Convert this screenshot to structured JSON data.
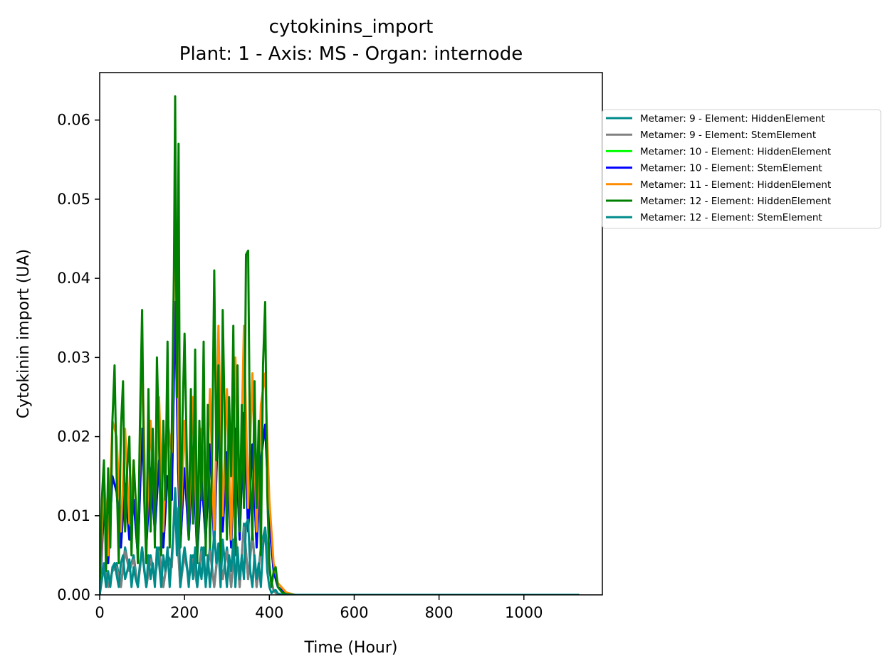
{
  "chart_data": {
    "type": "line",
    "title": "cytokinins_import",
    "subtitle": "Plant: 1 - Axis: MS - Organ: internode",
    "xlabel": "Time (Hour)",
    "ylabel": "Cytokinin import (UA)",
    "xlim": [
      0,
      1185
    ],
    "ylim": [
      0,
      0.066
    ],
    "xticks": [
      0,
      200,
      400,
      600,
      800,
      1000
    ],
    "yticks": [
      0.0,
      0.01,
      0.02,
      0.03,
      0.04,
      0.05,
      0.06
    ],
    "xtick_labels": [
      "0",
      "200",
      "400",
      "600",
      "800",
      "1000"
    ],
    "ytick_labels": [
      "0.00",
      "0.01",
      "0.02",
      "0.03",
      "0.04",
      "0.05",
      "0.06"
    ],
    "grid": false,
    "legend_position": "outside-right",
    "series": [
      {
        "name": "Metamer: 9 - Element: HiddenElement",
        "color": "#008B8B",
        "x": [
          0,
          10,
          20,
          30,
          40,
          50,
          60,
          70,
          80,
          90,
          100,
          110,
          120,
          130,
          140,
          150,
          160,
          170,
          178,
          185,
          190,
          200,
          210,
          220,
          230,
          240,
          250,
          260,
          270,
          280,
          290,
          300,
          310,
          320,
          330,
          340,
          350,
          360,
          370,
          380,
          390,
          400,
          410,
          420,
          440,
          460,
          500,
          600,
          800,
          1000,
          1130
        ],
        "values": [
          0.0,
          0.004,
          0.001,
          0.003,
          0.004,
          0.001,
          0.006,
          0.003,
          0.005,
          0.001,
          0.006,
          0.001,
          0.005,
          0.002,
          0.006,
          0.001,
          0.005,
          0.004,
          0.0135,
          0.006,
          0.001,
          0.0055,
          0.002,
          0.005,
          0.001,
          0.006,
          0.0015,
          0.006,
          0.001,
          0.0065,
          0.002,
          0.006,
          0.001,
          0.008,
          0.001,
          0.009,
          0.002,
          0.008,
          0.001,
          0.006,
          0.0085,
          0.003,
          0.0005,
          0.0,
          0.0,
          0.0,
          0.0,
          0.0,
          0.0,
          0.0,
          0.0
        ]
      },
      {
        "name": "Metamer: 9 - Element: StemElement",
        "color": "#808080",
        "x": [
          0,
          10,
          20,
          30,
          40,
          50,
          60,
          70,
          80,
          90,
          100,
          110,
          120,
          130,
          140,
          150,
          160,
          170,
          178,
          185,
          190,
          200,
          210,
          220,
          230,
          240,
          250,
          260,
          270,
          280,
          290,
          300,
          310,
          320,
          330,
          340,
          350,
          360,
          370,
          380,
          390,
          400,
          410,
          420,
          440,
          460,
          500,
          600,
          800,
          1000,
          1130
        ],
        "values": [
          0.0,
          0.0035,
          0.001,
          0.003,
          0.0035,
          0.001,
          0.0055,
          0.003,
          0.0045,
          0.001,
          0.0055,
          0.001,
          0.0045,
          0.002,
          0.0055,
          0.001,
          0.0045,
          0.0035,
          0.0125,
          0.0055,
          0.001,
          0.005,
          0.002,
          0.0045,
          0.001,
          0.0055,
          0.0015,
          0.0055,
          0.001,
          0.006,
          0.002,
          0.0055,
          0.001,
          0.0075,
          0.001,
          0.0085,
          0.002,
          0.0075,
          0.001,
          0.0055,
          0.008,
          0.003,
          0.0005,
          0.0,
          0.0,
          0.0,
          0.0,
          0.0,
          0.0,
          0.0,
          0.0
        ]
      },
      {
        "name": "Metamer: 10 - Element: HiddenElement",
        "color": "#00FF00",
        "x": [
          0,
          10,
          20,
          30,
          40,
          50,
          60,
          70,
          80,
          90,
          100,
          110,
          120,
          130,
          140,
          150,
          160,
          170,
          178,
          185,
          190,
          200,
          210,
          220,
          230,
          240,
          250,
          260,
          270,
          280,
          290,
          300,
          310,
          320,
          330,
          340,
          350,
          360,
          370,
          380,
          390,
          400,
          410,
          420,
          440,
          460,
          500,
          600,
          800,
          1000,
          1130
        ],
        "values": [
          0.0,
          0.011,
          0.004,
          0.015,
          0.013,
          0.006,
          0.014,
          0.007,
          0.012,
          0.005,
          0.021,
          0.006,
          0.016,
          0.008,
          0.017,
          0.006,
          0.015,
          0.012,
          0.037,
          0.016,
          0.006,
          0.016,
          0.007,
          0.018,
          0.005,
          0.015,
          0.007,
          0.019,
          0.006,
          0.024,
          0.008,
          0.018,
          0.006,
          0.021,
          0.007,
          0.023,
          0.008,
          0.019,
          0.006,
          0.017,
          0.0215,
          0.009,
          0.003,
          0.001,
          0.0002,
          0.0,
          0.0,
          0.0,
          0.0,
          0.0,
          0.0
        ]
      },
      {
        "name": "Metamer: 10 - Element: StemElement",
        "color": "#0000FF",
        "x": [
          0,
          10,
          20,
          30,
          40,
          50,
          60,
          70,
          80,
          90,
          100,
          110,
          120,
          130,
          140,
          150,
          160,
          170,
          178,
          185,
          190,
          200,
          210,
          220,
          230,
          240,
          250,
          260,
          270,
          280,
          290,
          300,
          310,
          320,
          330,
          340,
          350,
          360,
          370,
          380,
          390,
          400,
          410,
          420,
          440,
          460,
          500,
          600,
          800,
          1000,
          1130
        ],
        "values": [
          0.0,
          0.011,
          0.004,
          0.015,
          0.013,
          0.006,
          0.014,
          0.007,
          0.012,
          0.005,
          0.021,
          0.006,
          0.016,
          0.008,
          0.017,
          0.006,
          0.015,
          0.012,
          0.037,
          0.016,
          0.006,
          0.016,
          0.007,
          0.018,
          0.005,
          0.015,
          0.007,
          0.019,
          0.006,
          0.024,
          0.008,
          0.018,
          0.006,
          0.021,
          0.007,
          0.023,
          0.008,
          0.019,
          0.006,
          0.017,
          0.0215,
          0.009,
          0.003,
          0.001,
          0.0002,
          0.0,
          0.0,
          0.0,
          0.0,
          0.0,
          0.0
        ]
      },
      {
        "name": "Metamer: 11 - Element: HiddenElement",
        "color": "#FF8C00",
        "x": [
          0,
          10,
          20,
          30,
          40,
          50,
          60,
          70,
          80,
          90,
          100,
          110,
          120,
          130,
          140,
          150,
          160,
          170,
          178,
          185,
          190,
          200,
          210,
          220,
          230,
          240,
          250,
          260,
          270,
          280,
          290,
          300,
          310,
          320,
          330,
          340,
          350,
          360,
          370,
          380,
          390,
          400,
          410,
          420,
          440,
          460,
          500,
          600,
          800,
          1000,
          1130
        ],
        "values": [
          0.0,
          0.015,
          0.005,
          0.022,
          0.02,
          0.008,
          0.021,
          0.009,
          0.017,
          0.006,
          0.031,
          0.007,
          0.022,
          0.01,
          0.025,
          0.008,
          0.022,
          0.018,
          0.05,
          0.022,
          0.007,
          0.022,
          0.008,
          0.025,
          0.006,
          0.021,
          0.009,
          0.026,
          0.007,
          0.034,
          0.01,
          0.026,
          0.007,
          0.03,
          0.009,
          0.034,
          0.011,
          0.028,
          0.008,
          0.024,
          0.028,
          0.012,
          0.004,
          0.0015,
          0.0003,
          0.0,
          0.0,
          0.0,
          0.0,
          0.0,
          0.0
        ]
      },
      {
        "name": "Metamer: 12 - Element: HiddenElement",
        "color": "#008000",
        "x": [
          0,
          5,
          10,
          15,
          20,
          25,
          30,
          35,
          40,
          45,
          50,
          55,
          60,
          65,
          70,
          75,
          80,
          85,
          90,
          95,
          100,
          105,
          110,
          115,
          120,
          125,
          130,
          135,
          140,
          145,
          150,
          155,
          160,
          165,
          170,
          175,
          178,
          182,
          186,
          190,
          195,
          200,
          205,
          210,
          215,
          220,
          225,
          230,
          235,
          240,
          245,
          250,
          255,
          260,
          265,
          270,
          275,
          280,
          285,
          290,
          295,
          300,
          305,
          310,
          315,
          320,
          325,
          330,
          335,
          340,
          345,
          350,
          355,
          360,
          365,
          370,
          375,
          380,
          385,
          390,
          395,
          400,
          405,
          410,
          415,
          420,
          430,
          440,
          460,
          500,
          600,
          700,
          800,
          900,
          1000,
          1100,
          1130
        ],
        "values": [
          0.0,
          0.012,
          0.017,
          0.003,
          0.016,
          0.006,
          0.022,
          0.029,
          0.015,
          0.004,
          0.021,
          0.027,
          0.008,
          0.016,
          0.02,
          0.005,
          0.017,
          0.012,
          0.004,
          0.022,
          0.036,
          0.012,
          0.004,
          0.026,
          0.008,
          0.021,
          0.006,
          0.03,
          0.019,
          0.005,
          0.022,
          0.012,
          0.032,
          0.006,
          0.021,
          0.041,
          0.063,
          0.025,
          0.057,
          0.006,
          0.022,
          0.033,
          0.019,
          0.007,
          0.026,
          0.009,
          0.031,
          0.004,
          0.022,
          0.012,
          0.032,
          0.005,
          0.024,
          0.006,
          0.018,
          0.041,
          0.017,
          0.029,
          0.004,
          0.036,
          0.021,
          0.007,
          0.025,
          0.015,
          0.034,
          0.005,
          0.029,
          0.008,
          0.024,
          0.011,
          0.043,
          0.0435,
          0.015,
          0.007,
          0.027,
          0.011,
          0.022,
          0.005,
          0.029,
          0.037,
          0.013,
          0.004,
          0.001,
          0.003,
          0.0035,
          0.001,
          0.0003,
          0.0001,
          0.0,
          0.0,
          0.0,
          0.0,
          0.0,
          0.0,
          0.0,
          0.0,
          0.0
        ]
      },
      {
        "name": "Metamer: 12 - Element: StemElement",
        "color": "#008B8B",
        "x": [
          0,
          5,
          10,
          15,
          20,
          25,
          30,
          35,
          40,
          45,
          50,
          55,
          60,
          65,
          70,
          75,
          80,
          85,
          90,
          95,
          100,
          105,
          110,
          115,
          120,
          125,
          130,
          135,
          140,
          145,
          150,
          155,
          160,
          165,
          170,
          175,
          178,
          182,
          186,
          190,
          195,
          200,
          205,
          210,
          215,
          220,
          225,
          230,
          235,
          240,
          245,
          250,
          255,
          260,
          265,
          270,
          275,
          280,
          285,
          290,
          295,
          300,
          305,
          310,
          315,
          320,
          325,
          330,
          335,
          340,
          345,
          350,
          355,
          360,
          365,
          370,
          375,
          380,
          385,
          390,
          395,
          400,
          405,
          410,
          415,
          420,
          430,
          440,
          460,
          500,
          600,
          700,
          800,
          900,
          1000,
          1100,
          1130
        ],
        "values": [
          0.0,
          0.002,
          0.0035,
          0.001,
          0.003,
          0.001,
          0.0035,
          0.004,
          0.0025,
          0.001,
          0.004,
          0.005,
          0.002,
          0.003,
          0.0045,
          0.001,
          0.0035,
          0.002,
          0.001,
          0.004,
          0.006,
          0.003,
          0.001,
          0.005,
          0.002,
          0.004,
          0.001,
          0.006,
          0.004,
          0.001,
          0.005,
          0.003,
          0.006,
          0.001,
          0.005,
          0.009,
          0.013,
          0.005,
          0.011,
          0.001,
          0.004,
          0.006,
          0.004,
          0.001,
          0.005,
          0.002,
          0.006,
          0.001,
          0.004,
          0.002,
          0.006,
          0.001,
          0.005,
          0.001,
          0.004,
          0.008,
          0.004,
          0.006,
          0.001,
          0.007,
          0.004,
          0.001,
          0.005,
          0.003,
          0.007,
          0.001,
          0.006,
          0.002,
          0.005,
          0.002,
          0.009,
          0.0095,
          0.003,
          0.001,
          0.005,
          0.002,
          0.004,
          0.001,
          0.006,
          0.0085,
          0.003,
          0.001,
          0.0002,
          0.0005,
          0.0006,
          0.0002,
          0.0,
          0.0,
          0.0,
          0.0,
          0.0,
          0.0,
          0.0,
          0.0,
          0.0,
          0.0,
          0.0
        ]
      }
    ]
  }
}
